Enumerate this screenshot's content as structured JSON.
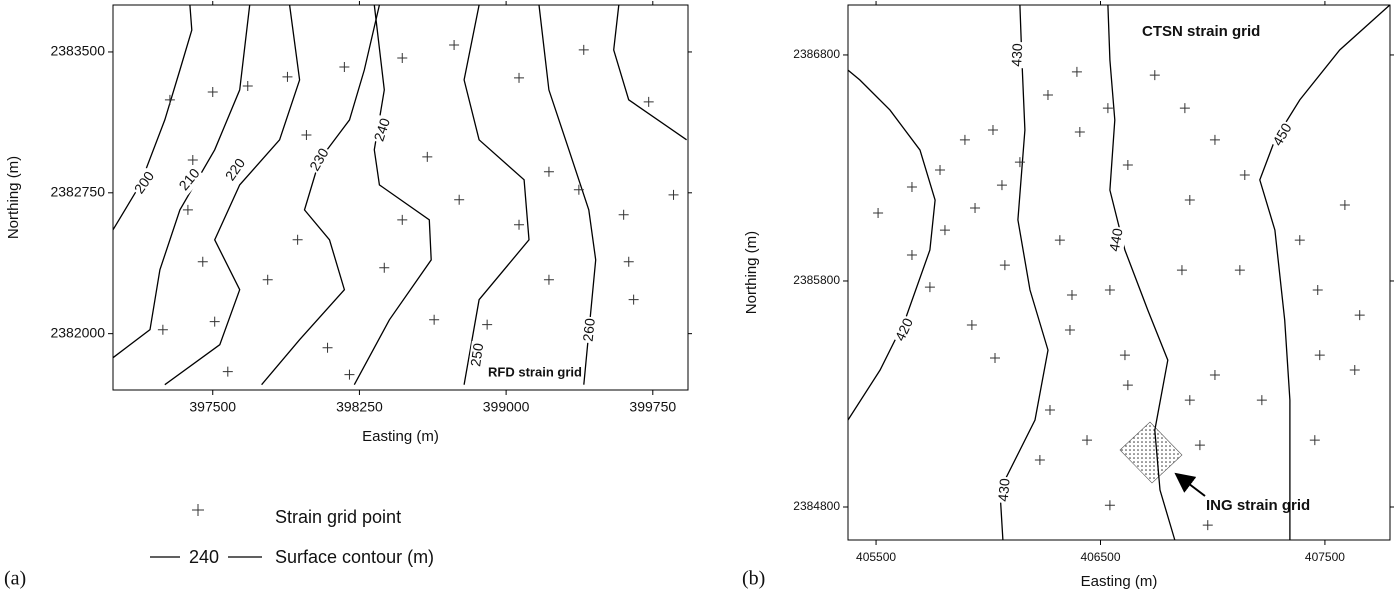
{
  "chart_data": [
    {
      "type": "scatter",
      "panel_label": "(a)",
      "xlabel": "Easting (m)",
      "ylabel": "Northing (m)",
      "xlim": [
        396990,
        399930
      ],
      "ylim": [
        2381700,
        2383750
      ],
      "xticks": [
        397500,
        398250,
        399000,
        399750
      ],
      "yticks": [
        2382000,
        2382750,
        2383500
      ],
      "annotation": "RFD strain grid",
      "legend": {
        "point": "Strain grid point",
        "contour_label": "240",
        "contour": "Surface contour (m)"
      },
      "points": {
        "x": [
          397281,
          397500,
          397882,
          398173,
          398734,
          399066,
          399397,
          399729,
          397398,
          397979,
          398597,
          399219,
          397373,
          397934,
          398469,
          399066,
          399601,
          399856,
          397449,
          397781,
          398377,
          399219,
          399627,
          397245,
          397510,
          398087,
          398632,
          398903,
          399652,
          397577,
          398199,
          397679,
          398469,
          398760,
          399372
        ],
        "y": [
          2383245,
          2383287,
          2383367,
          2383420,
          2383537,
          2383362,
          2383511,
          2383234,
          2382925,
          2383058,
          2382941,
          2382862,
          2382659,
          2382500,
          2382606,
          2382580,
          2382633,
          2382739,
          2382383,
          2382287,
          2382351,
          2382287,
          2382383,
          2382021,
          2382064,
          2381925,
          2382074,
          2382048,
          2382181,
          2381798,
          2381782,
          2383319,
          2383468,
          2382713,
          2382766
        ]
      },
      "contours": [
        {
          "labels": [
            "200"
          ],
          "x": [
            396990,
            397128,
            397255,
            397332,
            397393,
            397383
          ],
          "y": [
            2382553,
            2382792,
            2383138,
            2383404,
            2383617,
            2383750
          ]
        },
        {
          "labels": [
            "210"
          ],
          "x": [
            396990,
            397179,
            397230,
            397332,
            397510,
            397638,
            397689
          ],
          "y": [
            2381872,
            2382021,
            2382340,
            2382659,
            2382979,
            2383298,
            2383750
          ]
        },
        {
          "labels": [
            "220"
          ],
          "x": [
            397255,
            397536,
            397638,
            397510,
            397638,
            397842,
            397944,
            397893
          ],
          "y": [
            2381728,
            2381941,
            2382234,
            2382500,
            2382792,
            2383032,
            2383351,
            2383750
          ]
        },
        {
          "labels": [
            "230"
          ],
          "x": [
            397750,
            397944,
            398173,
            398097,
            397969,
            398046,
            398199,
            398275,
            398352
          ],
          "y": [
            2381728,
            2381968,
            2382234,
            2382500,
            2382659,
            2382925,
            2383138,
            2383404,
            2383750
          ]
        },
        {
          "labels": [
            "240"
          ],
          "x": [
            398224,
            398403,
            398617,
            398607,
            398352,
            398326,
            398377,
            398326
          ],
          "y": [
            2381728,
            2382074,
            2382393,
            2382606,
            2382792,
            2382979,
            2383298,
            2383750
          ]
        },
        {
          "labels": [
            "250"
          ],
          "x": [
            398785,
            398862,
            399117,
            399092,
            398862,
            398785,
            398862
          ],
          "y": [
            2381728,
            2382181,
            2382500,
            2382819,
            2383032,
            2383351,
            2383750
          ]
        },
        {
          "labels": [
            "260"
          ],
          "x": [
            399397,
            399458,
            399423,
            399321,
            399219,
            399168
          ],
          "y": [
            2381728,
            2382393,
            2382659,
            2382979,
            2383298,
            2383750
          ]
        },
        {
          "x": [
            399923,
            399627,
            399550,
            399576
          ],
          "y": [
            2383032,
            2383245,
            2383511,
            2383750
          ]
        }
      ]
    },
    {
      "type": "scatter",
      "panel_label": "(b)",
      "xlabel": "Easting (m)",
      "ylabel": "Northing (m)",
      "xlim": [
        405375,
        407790
      ],
      "ylim": [
        2384654,
        2387021
      ],
      "xticks": [
        405500,
        406500,
        407500
      ],
      "yticks": [
        2384800,
        2385800,
        2386800
      ],
      "annotation": "CTSN strain grid",
      "inset_label": "ING strain grid",
      "points": {
        "x": [
          405509,
          405660,
          405807,
          405785,
          405896,
          405941,
          406021,
          406061,
          406141,
          406266,
          406395,
          406408,
          406533,
          406622,
          406742,
          406876,
          407010,
          406898,
          407143,
          407388,
          407589,
          406319,
          406074,
          405660,
          405740,
          406373,
          406542,
          406863,
          407121,
          407468,
          407655,
          407633,
          405927,
          406030,
          406364,
          406609,
          407010,
          406275,
          406622,
          406898,
          407219,
          407477,
          406230,
          406440,
          406943,
          407455,
          406542,
          406978
        ],
        "y": [
          2386101,
          2386216,
          2386025,
          2386291,
          2386424,
          2386123,
          2386468,
          2386224,
          2386326,
          2386623,
          2386725,
          2386459,
          2386565,
          2386313,
          2386711,
          2386565,
          2386424,
          2386158,
          2386269,
          2385981,
          2386136,
          2385981,
          2385870,
          2385915,
          2385773,
          2385738,
          2385760,
          2385848,
          2385848,
          2385760,
          2385649,
          2385406,
          2385605,
          2385459,
          2385583,
          2385472,
          2385384,
          2385229,
          2385339,
          2385273,
          2385273,
          2385472,
          2385008,
          2385096,
          2385074,
          2385096,
          2384808,
          2384720
        ]
      },
      "contours": [
        {
          "labels": [
            "420"
          ],
          "x": [
            405375,
            405518,
            405629,
            405740,
            405763,
            405696,
            405562,
            405428,
            405375
          ],
          "y": [
            2385185,
            2385406,
            2385627,
            2385937,
            2386158,
            2386379,
            2386556,
            2386689,
            2386733
          ]
        },
        {
          "labels": [
            "430",
            "430"
          ],
          "x": [
            406065,
            406052,
            406208,
            406266,
            406186,
            406132,
            406163,
            406150,
            406141
          ],
          "y": [
            2384654,
            2384875,
            2385185,
            2385494,
            2385760,
            2386070,
            2386468,
            2386778,
            2387021
          ]
        },
        {
          "labels": [
            "440"
          ],
          "x": [
            406831,
            406765,
            406742,
            406800,
            406711,
            406609,
            406542,
            406564,
            406542,
            406533
          ],
          "y": [
            2384654,
            2384875,
            2385140,
            2385450,
            2385671,
            2385937,
            2386202,
            2386512,
            2386778,
            2387021
          ]
        },
        {
          "labels": [
            "450"
          ],
          "x": [
            407789,
            407566,
            407388,
            407277,
            407210,
            407277,
            407321,
            407344,
            407344
          ],
          "y": [
            2387021,
            2386822,
            2386601,
            2386424,
            2386247,
            2386025,
            2385627,
            2385273,
            2384654
          ]
        }
      ]
    }
  ]
}
